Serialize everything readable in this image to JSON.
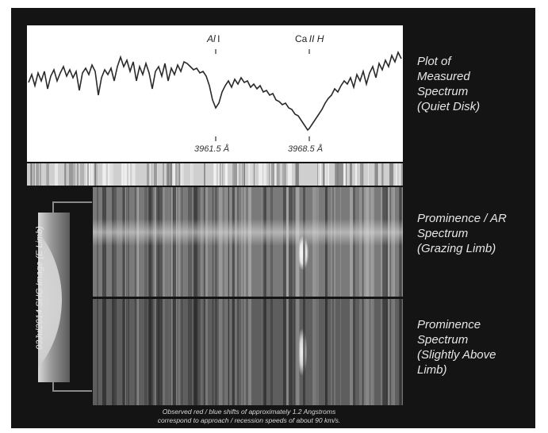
{
  "plot": {
    "lines": [
      {
        "element": "Al",
        "ion": "I"
      },
      {
        "element": "Ca",
        "ion": "II H"
      }
    ],
    "wavelengths": [
      "3961.5 Å",
      "3968.5 Å"
    ]
  },
  "side_labels": {
    "measured": [
      "Plot of",
      "Measured",
      "Spectrum",
      "(Quiet Disk)"
    ],
    "prominence_ar": [
      "Prominence / AR",
      "Spectrum",
      "(Grazing Limb)"
    ],
    "prominence_limb": [
      "Prominence",
      "Spectrum",
      "(Slightly Above",
      "Limb)"
    ]
  },
  "vertical_caption": "03Jul2014 SHG Image (E Limb)",
  "footnote": [
    "Observed red / blue shifts of approximately 1.2 Angstroms",
    "correspond to approach / recession speeds of about 90 km/s."
  ],
  "colors": {
    "frame": "#141414",
    "plot_bg": "#ffffff",
    "curve": "#2a2a2a",
    "text_light": "#e6e6e6"
  }
}
